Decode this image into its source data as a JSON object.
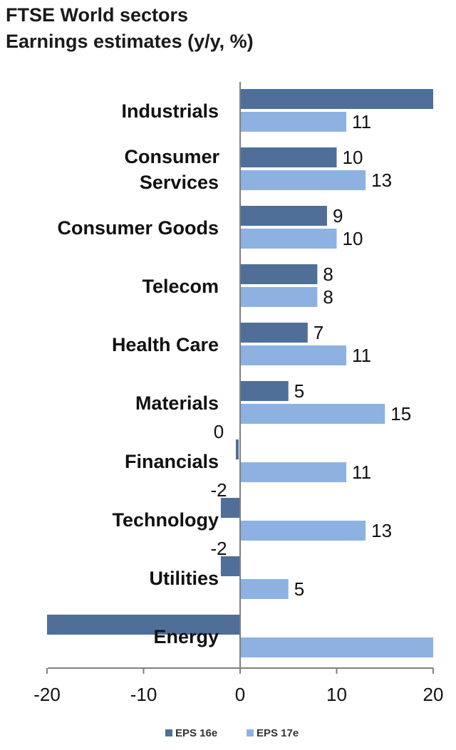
{
  "chart_data": {
    "type": "bar",
    "orientation": "horizontal",
    "title": "FTSE World sectors",
    "subtitle": "Earnings estimates (y/y, %)",
    "categories": [
      "Industrials",
      "Consumer Services",
      "Consumer Goods",
      "Telecom",
      "Health Care",
      "Materials",
      "Financials",
      "Technology",
      "Utilities",
      "Energy"
    ],
    "category_lines": [
      [
        "Industrials"
      ],
      [
        "Consumer",
        "Services"
      ],
      [
        "Consumer Goods"
      ],
      [
        "Telecom"
      ],
      [
        "Health Care"
      ],
      [
        "Materials"
      ],
      [
        "Financials"
      ],
      [
        "Technology"
      ],
      [
        "Utilities"
      ],
      [
        "Energy"
      ]
    ],
    "series": [
      {
        "name": "EPS 16e",
        "color": "#4f6f99",
        "values": [
          20,
          10,
          9,
          8,
          7,
          5,
          0,
          -2,
          -2,
          -20
        ],
        "labels": [
          "",
          "10",
          "9",
          "8",
          "7",
          "5",
          "0",
          "-2",
          "-2",
          ""
        ]
      },
      {
        "name": "EPS 17e",
        "color": "#8db2e2",
        "values": [
          11,
          13,
          10,
          8,
          11,
          15,
          11,
          13,
          5,
          20
        ],
        "labels": [
          "11",
          "13",
          "10",
          "8",
          "11",
          "15",
          "11",
          "13",
          "5",
          ""
        ]
      }
    ],
    "xlim": [
      -20,
      20
    ],
    "xticks": [
      -20,
      -10,
      0,
      10,
      20
    ],
    "xtick_labels": [
      "-20",
      "-10",
      "0",
      "10",
      "20"
    ],
    "legend_position": "bottom"
  }
}
